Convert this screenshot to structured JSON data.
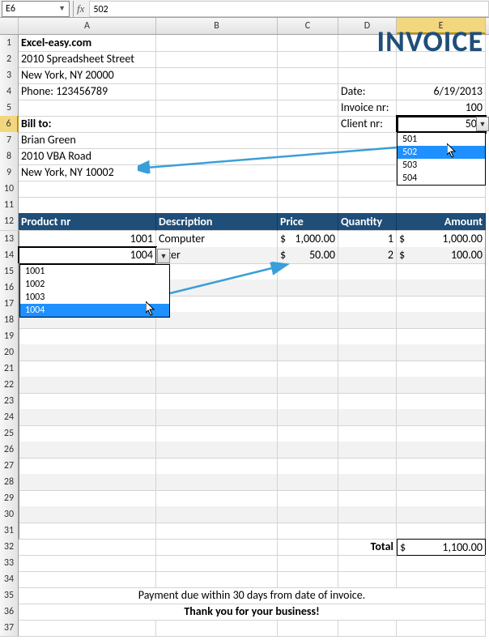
{
  "formula_bar": {
    "name_box": "E6",
    "fx": "fx",
    "value": "502"
  },
  "columns": [
    "",
    "A",
    "B",
    "C",
    "D",
    "E"
  ],
  "selected_col_index": 5,
  "rows": {
    "count": 37,
    "selected": 6
  },
  "company": {
    "name": "Excel-easy.com",
    "street": "2010 Spreadsheet Street",
    "city": "New York, NY 20000",
    "phone": "Phone: 123456789"
  },
  "invoice_title": "INVOICE",
  "meta": {
    "date_label": "Date:",
    "date_value": "6/19/2013",
    "invoice_nr_label": "Invoice nr:",
    "invoice_nr_value": "100",
    "client_nr_label": "Client nr:",
    "client_nr_value": "502"
  },
  "bill_to": {
    "label": "Bill to:",
    "name": "Brian Green",
    "street": "2010 VBA Road",
    "city": "New York, NY 10002"
  },
  "client_dropdown": {
    "options": [
      "501",
      "502",
      "503",
      "504"
    ],
    "highlighted": "502"
  },
  "product_dropdown": {
    "options": [
      "1001",
      "1002",
      "1003",
      "1004"
    ],
    "highlighted": "1004"
  },
  "table": {
    "headers": {
      "product_nr": "Product nr",
      "description": "Description",
      "price": "Price",
      "quantity": "Quantity",
      "amount": "Amount"
    },
    "rows": [
      {
        "product_nr": "1001",
        "description": "Computer",
        "price": "1,000.00",
        "qty": "1",
        "amount": "1,000.00"
      },
      {
        "product_nr": "1004",
        "description": "inter",
        "price": "50.00",
        "qty": "2",
        "amount": "100.00"
      }
    ],
    "total_label": "Total",
    "total_value": "1,100.00"
  },
  "footer": {
    "line1": "Payment due within 30 days from date of invoice.",
    "line2": "Thank you for your business!"
  },
  "colors": {
    "header_bg": "#1f4e79",
    "stripe": "#f2f2f2",
    "col_sel": "#f3d77f",
    "arrow": "#3a9fd8",
    "dropdown_hl": "#1e90ff"
  }
}
